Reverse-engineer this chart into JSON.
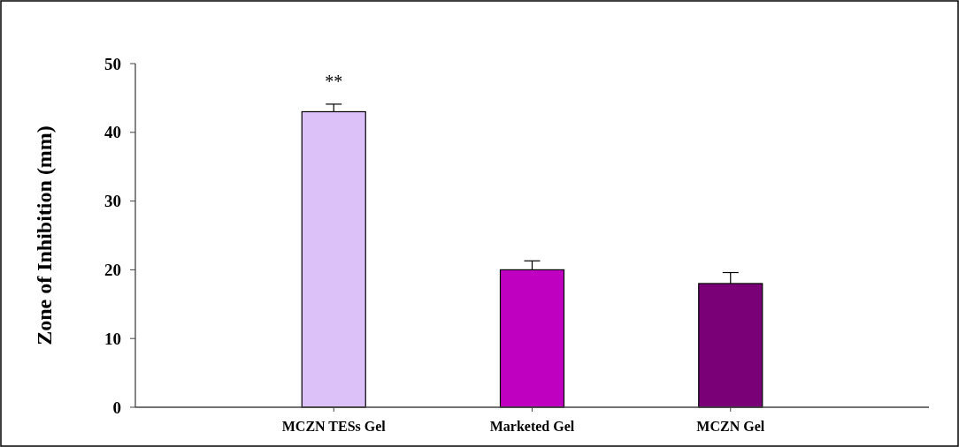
{
  "chart_data": {
    "type": "bar",
    "ylabel": "Zone of Inhibition (mm)",
    "categories": [
      "MCZN TESs Gel",
      "Marketed Gel",
      "MCZN Gel"
    ],
    "values": [
      43,
      20,
      18
    ],
    "colors": [
      "#dcc0f8",
      "#c000c0",
      "#7a0078"
    ],
    "errors": [
      1.1,
      1.3,
      1.6
    ],
    "ylim": [
      0,
      50
    ],
    "yticks": [
      0,
      10,
      20,
      30,
      40,
      50
    ],
    "grid": false,
    "annotations": [
      "**"
    ]
  }
}
